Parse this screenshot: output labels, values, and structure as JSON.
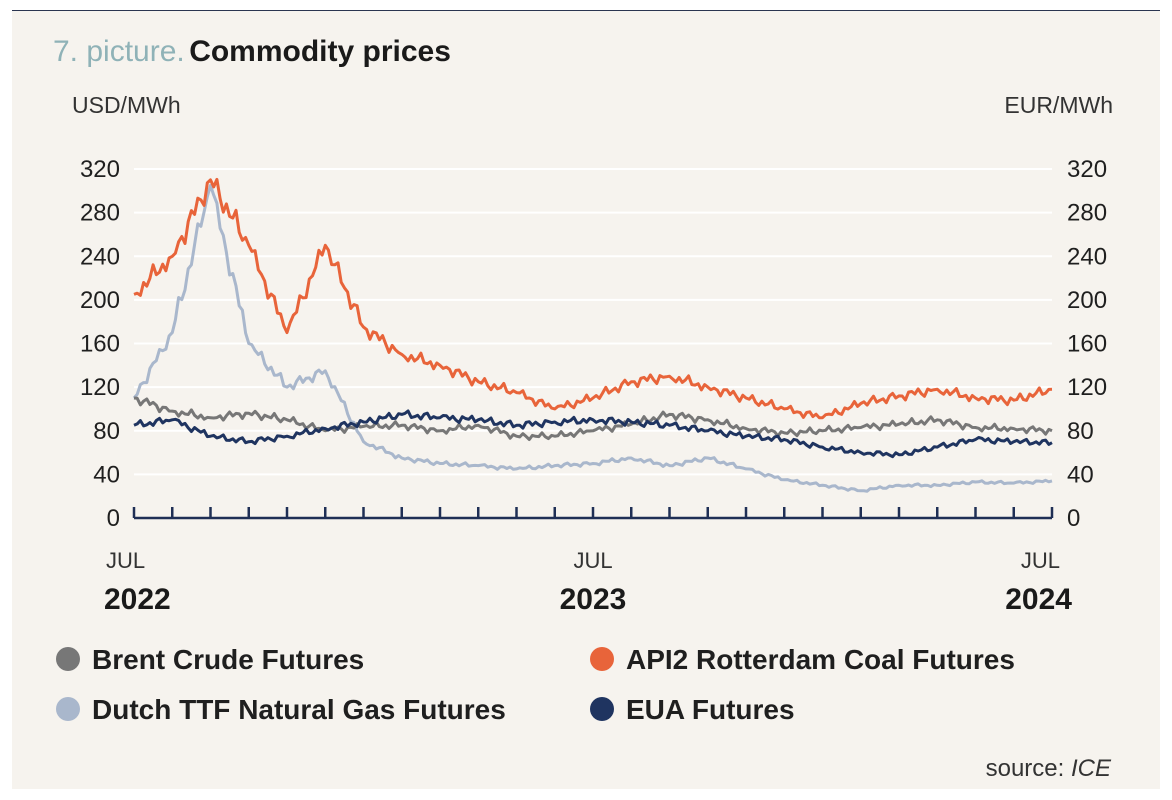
{
  "title_prefix": "7. picture.",
  "title": "Commodity prices",
  "source_label": "source:",
  "source_name": "ICE",
  "chart_data": {
    "type": "line",
    "y_left_label": "USD/MWh",
    "y_right_label": "EUR/MWh",
    "ylim": [
      0,
      320
    ],
    "yticks": [
      0,
      40,
      80,
      120,
      160,
      200,
      240,
      280,
      320
    ],
    "xlim": [
      "2022-07",
      "2024-07"
    ],
    "x_ticks": [
      {
        "month": "JUL",
        "year": "2022",
        "x": "2022-07"
      },
      {
        "month": "JUL",
        "year": "2023",
        "x": "2023-07"
      },
      {
        "month": "JUL",
        "year": "2024",
        "x": "2024-07"
      }
    ],
    "grid": true,
    "legend_position": "bottom",
    "series": [
      {
        "name": "Brent Crude Futures",
        "color": "#777777",
        "x": [
          "2022-07",
          "2022-08",
          "2022-09",
          "2022-10",
          "2022-11",
          "2022-12",
          "2023-01",
          "2023-02",
          "2023-03",
          "2023-04",
          "2023-05",
          "2023-06",
          "2023-07",
          "2023-08",
          "2023-09",
          "2023-10",
          "2023-11",
          "2023-12",
          "2024-01",
          "2024-02",
          "2024-03",
          "2024-04",
          "2024-05",
          "2024-06",
          "2024-07"
        ],
        "values": [
          110,
          98,
          92,
          96,
          90,
          80,
          84,
          85,
          80,
          85,
          75,
          75,
          80,
          86,
          95,
          90,
          82,
          78,
          80,
          83,
          86,
          90,
          83,
          82,
          80
        ]
      },
      {
        "name": "API2 Rotterdam Coal Futures",
        "color": "#e8643a",
        "x": [
          "2022-07",
          "2022-08",
          "2022-09",
          "2022-10",
          "2022-11",
          "2022-12",
          "2023-01",
          "2023-02",
          "2023-03",
          "2023-04",
          "2023-05",
          "2023-06",
          "2023-07",
          "2023-08",
          "2023-09",
          "2023-10",
          "2023-11",
          "2023-12",
          "2024-01",
          "2024-02",
          "2024-03",
          "2024-04",
          "2024-05",
          "2024-06",
          "2024-07"
        ],
        "values": [
          205,
          240,
          310,
          250,
          170,
          250,
          175,
          150,
          140,
          125,
          115,
          100,
          110,
          125,
          130,
          120,
          110,
          100,
          92,
          105,
          112,
          118,
          110,
          108,
          118
        ]
      },
      {
        "name": "Dutch TTF Natural Gas Futures",
        "color": "#a9b7cc",
        "x": [
          "2022-07",
          "2022-08",
          "2022-09",
          "2022-10",
          "2022-11",
          "2022-12",
          "2023-01",
          "2023-02",
          "2023-03",
          "2023-04",
          "2023-05",
          "2023-06",
          "2023-07",
          "2023-08",
          "2023-09",
          "2023-10",
          "2023-11",
          "2023-12",
          "2024-01",
          "2024-02",
          "2024-03",
          "2024-04",
          "2024-05",
          "2024-06",
          "2024-07"
        ],
        "values": [
          110,
          170,
          305,
          160,
          120,
          135,
          70,
          55,
          50,
          48,
          45,
          48,
          50,
          55,
          48,
          55,
          45,
          35,
          30,
          25,
          30,
          30,
          33,
          32,
          34
        ]
      },
      {
        "name": "EUA Futures",
        "color": "#1f3460",
        "x": [
          "2022-07",
          "2022-08",
          "2022-09",
          "2022-10",
          "2022-11",
          "2022-12",
          "2023-01",
          "2023-02",
          "2023-03",
          "2023-04",
          "2023-05",
          "2023-06",
          "2023-07",
          "2023-08",
          "2023-09",
          "2023-10",
          "2023-11",
          "2023-12",
          "2024-01",
          "2024-02",
          "2024-03",
          "2024-04",
          "2024-05",
          "2024-06",
          "2024-07"
        ],
        "values": [
          85,
          90,
          75,
          70,
          75,
          82,
          88,
          95,
          92,
          90,
          85,
          88,
          90,
          88,
          85,
          80,
          75,
          72,
          65,
          60,
          58,
          65,
          72,
          70,
          69
        ]
      }
    ]
  }
}
